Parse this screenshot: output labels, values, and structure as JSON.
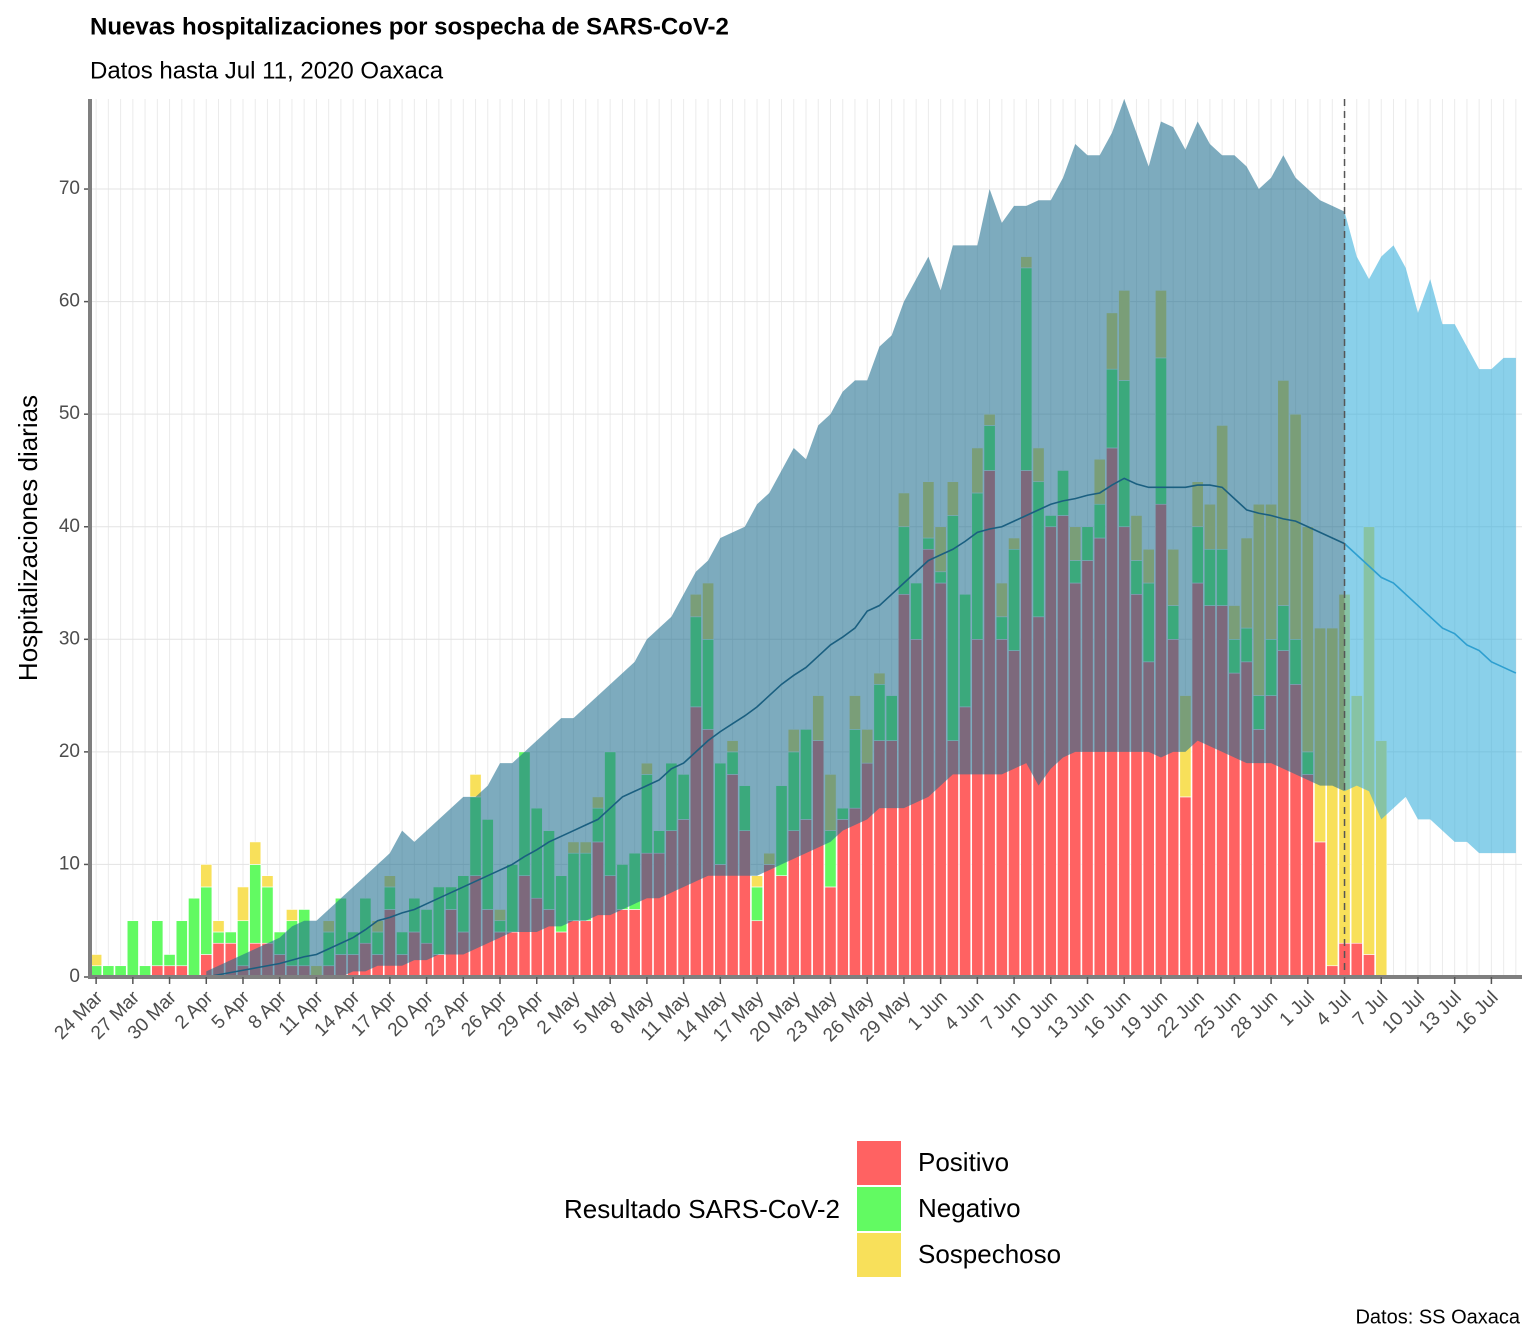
{
  "chart_data": {
    "type": "bar",
    "stacked": true,
    "title": "Nuevas hospitalizaciones por sospecha de SARS-CoV-2",
    "subtitle": "Datos hasta Jul 11, 2020 Oaxaca",
    "y_label": "Hospitalizaciones diarias",
    "legend_title": "Resultado SARS-CoV-2",
    "caption": "Datos: SS Oaxaca",
    "ylim": [
      0,
      78
    ],
    "yticks": [
      0,
      10,
      20,
      30,
      40,
      50,
      60,
      70
    ],
    "grid": true,
    "categories": [
      "24 Mar",
      null,
      null,
      "27 Mar",
      null,
      null,
      "30 Mar",
      null,
      null,
      "2 Apr",
      null,
      null,
      "5 Apr",
      null,
      null,
      "8 Apr",
      null,
      null,
      "11 Apr",
      null,
      null,
      "14 Apr",
      null,
      null,
      "17 Apr",
      null,
      null,
      "20 Apr",
      null,
      null,
      "23 Apr",
      null,
      null,
      "26 Apr",
      null,
      null,
      "29 Apr",
      null,
      null,
      "2 May",
      null,
      null,
      "5 May",
      null,
      null,
      "8 May",
      null,
      null,
      "11 May",
      null,
      null,
      "14 May",
      null,
      null,
      "17 May",
      null,
      null,
      "20 May",
      null,
      null,
      "23 May",
      null,
      null,
      "26 May",
      null,
      null,
      "29 May",
      null,
      null,
      "1 Jun",
      null,
      null,
      "4 Jun",
      null,
      null,
      "7 Jun",
      null,
      null,
      "10 Jun",
      null,
      null,
      "13 Jun",
      null,
      null,
      "16 Jun",
      null,
      null,
      "19 Jun",
      null,
      null,
      "22 Jun",
      null,
      null,
      "25 Jun",
      null,
      null,
      "28 Jun",
      null,
      null,
      "1 Jul",
      null,
      null,
      "4 Jul",
      null,
      null,
      "7 Jul",
      null,
      null,
      "10 Jul",
      null,
      null,
      "13 Jul",
      null,
      null,
      "16 Jul",
      null,
      null
    ],
    "series": [
      {
        "name": "Positivo",
        "color": "#ff6262",
        "values": [
          0,
          0,
          0,
          0,
          0,
          1,
          1,
          1,
          0,
          2,
          3,
          3,
          1,
          3,
          3,
          2,
          1,
          1,
          0,
          1,
          2,
          2,
          3,
          2,
          6,
          2,
          4,
          3,
          2,
          6,
          4,
          9,
          6,
          4,
          4,
          9,
          7,
          6,
          4,
          5,
          5,
          12,
          9,
          6,
          6,
          11,
          11,
          13,
          14,
          24,
          22,
          10,
          18,
          13,
          5,
          10,
          9,
          13,
          14,
          21,
          8,
          14,
          15,
          19,
          21,
          21,
          34,
          30,
          38,
          35,
          21,
          24,
          30,
          45,
          30,
          29,
          45,
          32,
          40,
          41,
          35,
          37,
          39,
          47,
          40,
          34,
          28,
          42,
          30,
          16,
          35,
          33,
          33,
          27,
          28,
          22,
          25,
          29,
          26,
          18,
          12,
          1,
          3,
          3,
          2,
          0,
          null,
          null,
          null,
          null,
          null,
          null,
          null,
          null,
          null,
          null,
          null
        ]
      },
      {
        "name": "Negativo",
        "color": "#62fa62",
        "values": [
          1,
          1,
          1,
          5,
          1,
          4,
          1,
          4,
          7,
          6,
          1,
          1,
          4,
          7,
          5,
          2,
          4,
          5,
          0,
          3,
          5,
          2,
          4,
          2,
          2,
          2,
          3,
          3,
          6,
          2,
          5,
          7,
          8,
          1,
          6,
          11,
          8,
          7,
          5,
          6,
          6,
          3,
          11,
          4,
          5,
          7,
          2,
          6,
          4,
          8,
          8,
          9,
          2,
          4,
          3,
          0,
          8,
          7,
          8,
          0,
          5,
          1,
          7,
          0,
          5,
          4,
          6,
          5,
          1,
          1,
          20,
          10,
          13,
          4,
          2,
          9,
          18,
          12,
          1,
          4,
          2,
          3,
          3,
          7,
          13,
          3,
          7,
          13,
          3,
          0,
          5,
          5,
          5,
          3,
          3,
          3,
          5,
          4,
          4,
          2,
          0,
          0,
          0,
          0,
          0,
          0,
          null,
          null,
          null,
          null,
          null,
          null,
          null,
          null,
          null,
          null,
          null
        ]
      },
      {
        "name": "Sospechoso",
        "color": "#f8e05a",
        "values": [
          1,
          0,
          0,
          0,
          0,
          0,
          0,
          0,
          0,
          2,
          1,
          0,
          3,
          2,
          1,
          0,
          1,
          0,
          1,
          1,
          0,
          0,
          0,
          1,
          1,
          0,
          0,
          0,
          0,
          0,
          0,
          2,
          0,
          1,
          0,
          0,
          0,
          0,
          0,
          1,
          1,
          1,
          0,
          0,
          0,
          1,
          0,
          0,
          0,
          2,
          5,
          0,
          1,
          0,
          1,
          1,
          0,
          2,
          0,
          4,
          5,
          0,
          3,
          3,
          1,
          0,
          3,
          0,
          5,
          4,
          3,
          0,
          4,
          1,
          3,
          1,
          1,
          3,
          0,
          0,
          3,
          0,
          4,
          5,
          8,
          4,
          3,
          6,
          5,
          9,
          4,
          4,
          11,
          3,
          8,
          17,
          12,
          20,
          20,
          20,
          19,
          30,
          31,
          22,
          38,
          21,
          null,
          null,
          null,
          null,
          null,
          null,
          null,
          null,
          null,
          null,
          null
        ]
      }
    ],
    "bands": [
      {
        "color": "#1f6f8f",
        "line_color": "#1a5f80",
        "lower": [
          null,
          null,
          null,
          null,
          null,
          null,
          null,
          null,
          null,
          0,
          0,
          0,
          0,
          0,
          0,
          0,
          0,
          0,
          0,
          0,
          0,
          0.5,
          0.5,
          1,
          1,
          1,
          1.5,
          1.5,
          2,
          2,
          2,
          2.5,
          3,
          3.5,
          4,
          4,
          4,
          4.5,
          4.5,
          5,
          5,
          5.5,
          5.5,
          6,
          6.5,
          7,
          7,
          7.5,
          8,
          8.5,
          9,
          9,
          9,
          9,
          9,
          9.5,
          10,
          10.5,
          11,
          11.5,
          12,
          13,
          13.5,
          14,
          15,
          15,
          15,
          15.5,
          16,
          17,
          18,
          18,
          18,
          18,
          18,
          18.5,
          19,
          17,
          18.5,
          19.5,
          20,
          20,
          20,
          20,
          20,
          20,
          20,
          19.5,
          20,
          20,
          21,
          20.5,
          20,
          19.5,
          19,
          19,
          19,
          18.5,
          18,
          17.5,
          17,
          17,
          16.5,
          null,
          null,
          null,
          null,
          null,
          null,
          null,
          null,
          null,
          null,
          null,
          null,
          null,
          null
        ],
        "upper": [
          null,
          null,
          null,
          null,
          null,
          null,
          null,
          null,
          null,
          0.5,
          1,
          1.5,
          2,
          2.5,
          3,
          3.5,
          4.5,
          5,
          5,
          6,
          7,
          8,
          9,
          10,
          11,
          13,
          12,
          13,
          14,
          15,
          16,
          16,
          17,
          19,
          19,
          20,
          21,
          22,
          23,
          23,
          24,
          25,
          26,
          27,
          28,
          30,
          31,
          32,
          34,
          36,
          37,
          39,
          39.5,
          40,
          42,
          43,
          45,
          47,
          46,
          49,
          50,
          52,
          53,
          53,
          56,
          57,
          60,
          62,
          64,
          61,
          65,
          65,
          65,
          70,
          67,
          68.5,
          68.5,
          69,
          69,
          71,
          74,
          73,
          73,
          75,
          78,
          75,
          72,
          76,
          75.5,
          73.5,
          76,
          74,
          73,
          73,
          72,
          70,
          71,
          73,
          71,
          70,
          69,
          68.5,
          68,
          null,
          null,
          null,
          null,
          null,
          null,
          null,
          null,
          null,
          null,
          null,
          null,
          null,
          null
        ],
        "center": [
          null,
          null,
          null,
          null,
          null,
          null,
          null,
          null,
          null,
          0,
          0.2,
          0.4,
          0.6,
          0.8,
          1,
          1.2,
          1.5,
          1.8,
          2,
          2.5,
          3,
          3.5,
          4.2,
          5,
          5.3,
          5.7,
          6,
          6.5,
          7,
          7.5,
          8,
          8.5,
          9,
          9.5,
          10,
          10.7,
          11.3,
          12,
          12.5,
          13,
          13.5,
          14,
          15,
          16,
          16.5,
          17,
          17.5,
          18.5,
          19,
          20,
          21,
          21.8,
          22.5,
          23.2,
          24,
          25,
          26,
          26.8,
          27.5,
          28.5,
          29.5,
          30.2,
          31,
          32.5,
          33,
          34,
          35,
          36,
          37,
          37.5,
          38,
          38.7,
          39.5,
          39.8,
          40,
          40.5,
          41,
          41.5,
          42,
          42.3,
          42.5,
          42.8,
          43,
          43.7,
          44.3,
          43.8,
          43.5,
          43.5,
          43.5,
          43.5,
          43.7,
          43.7,
          43.5,
          42.5,
          41.5,
          41.2,
          41,
          40.7,
          40.5,
          40,
          39.5,
          39,
          38.5,
          null,
          null,
          null,
          null,
          null,
          null,
          null,
          null,
          null,
          null,
          null,
          null,
          null,
          null
        ]
      },
      {
        "color": "#35aedb",
        "line_color": "#2e9fd0",
        "lower": [
          null,
          null,
          null,
          null,
          null,
          null,
          null,
          null,
          null,
          null,
          null,
          null,
          null,
          null,
          null,
          null,
          null,
          null,
          null,
          null,
          null,
          null,
          null,
          null,
          null,
          null,
          null,
          null,
          null,
          null,
          null,
          null,
          null,
          null,
          null,
          null,
          null,
          null,
          null,
          null,
          null,
          null,
          null,
          null,
          null,
          null,
          null,
          null,
          null,
          null,
          null,
          null,
          null,
          null,
          null,
          null,
          null,
          null,
          null,
          null,
          null,
          null,
          null,
          null,
          null,
          null,
          null,
          null,
          null,
          null,
          null,
          null,
          null,
          null,
          null,
          null,
          null,
          null,
          null,
          null,
          null,
          null,
          null,
          null,
          null,
          null,
          null,
          null,
          null,
          null,
          null,
          null,
          null,
          null,
          null,
          null,
          null,
          null,
          null,
          null,
          null,
          null,
          16.5,
          17,
          16.5,
          14,
          15,
          16,
          14,
          14,
          13,
          12,
          12,
          11,
          11,
          11,
          11
        ],
        "upper": [
          null,
          null,
          null,
          null,
          null,
          null,
          null,
          null,
          null,
          null,
          null,
          null,
          null,
          null,
          null,
          null,
          null,
          null,
          null,
          null,
          null,
          null,
          null,
          null,
          null,
          null,
          null,
          null,
          null,
          null,
          null,
          null,
          null,
          null,
          null,
          null,
          null,
          null,
          null,
          null,
          null,
          null,
          null,
          null,
          null,
          null,
          null,
          null,
          null,
          null,
          null,
          null,
          null,
          null,
          null,
          null,
          null,
          null,
          null,
          null,
          null,
          null,
          null,
          null,
          null,
          null,
          null,
          null,
          null,
          null,
          null,
          null,
          null,
          null,
          null,
          null,
          null,
          null,
          null,
          null,
          null,
          null,
          null,
          null,
          null,
          null,
          null,
          null,
          null,
          null,
          null,
          null,
          null,
          null,
          null,
          null,
          null,
          null,
          null,
          null,
          null,
          null,
          68,
          64,
          62,
          64,
          65,
          63,
          59,
          62,
          58,
          58,
          56,
          54,
          54,
          55,
          55
        ],
        "center": [
          null,
          null,
          null,
          null,
          null,
          null,
          null,
          null,
          null,
          null,
          null,
          null,
          null,
          null,
          null,
          null,
          null,
          null,
          null,
          null,
          null,
          null,
          null,
          null,
          null,
          null,
          null,
          null,
          null,
          null,
          null,
          null,
          null,
          null,
          null,
          null,
          null,
          null,
          null,
          null,
          null,
          null,
          null,
          null,
          null,
          null,
          null,
          null,
          null,
          null,
          null,
          null,
          null,
          null,
          null,
          null,
          null,
          null,
          null,
          null,
          null,
          null,
          null,
          null,
          null,
          null,
          null,
          null,
          null,
          null,
          null,
          null,
          null,
          null,
          null,
          null,
          null,
          null,
          null,
          null,
          null,
          null,
          null,
          null,
          null,
          null,
          null,
          null,
          null,
          null,
          null,
          null,
          null,
          null,
          null,
          null,
          null,
          null,
          null,
          null,
          null,
          null,
          38.5,
          37.5,
          36.5,
          35.5,
          35,
          34,
          33,
          32,
          31,
          30.5,
          29.5,
          29,
          28,
          27.5,
          27
        ]
      }
    ]
  }
}
